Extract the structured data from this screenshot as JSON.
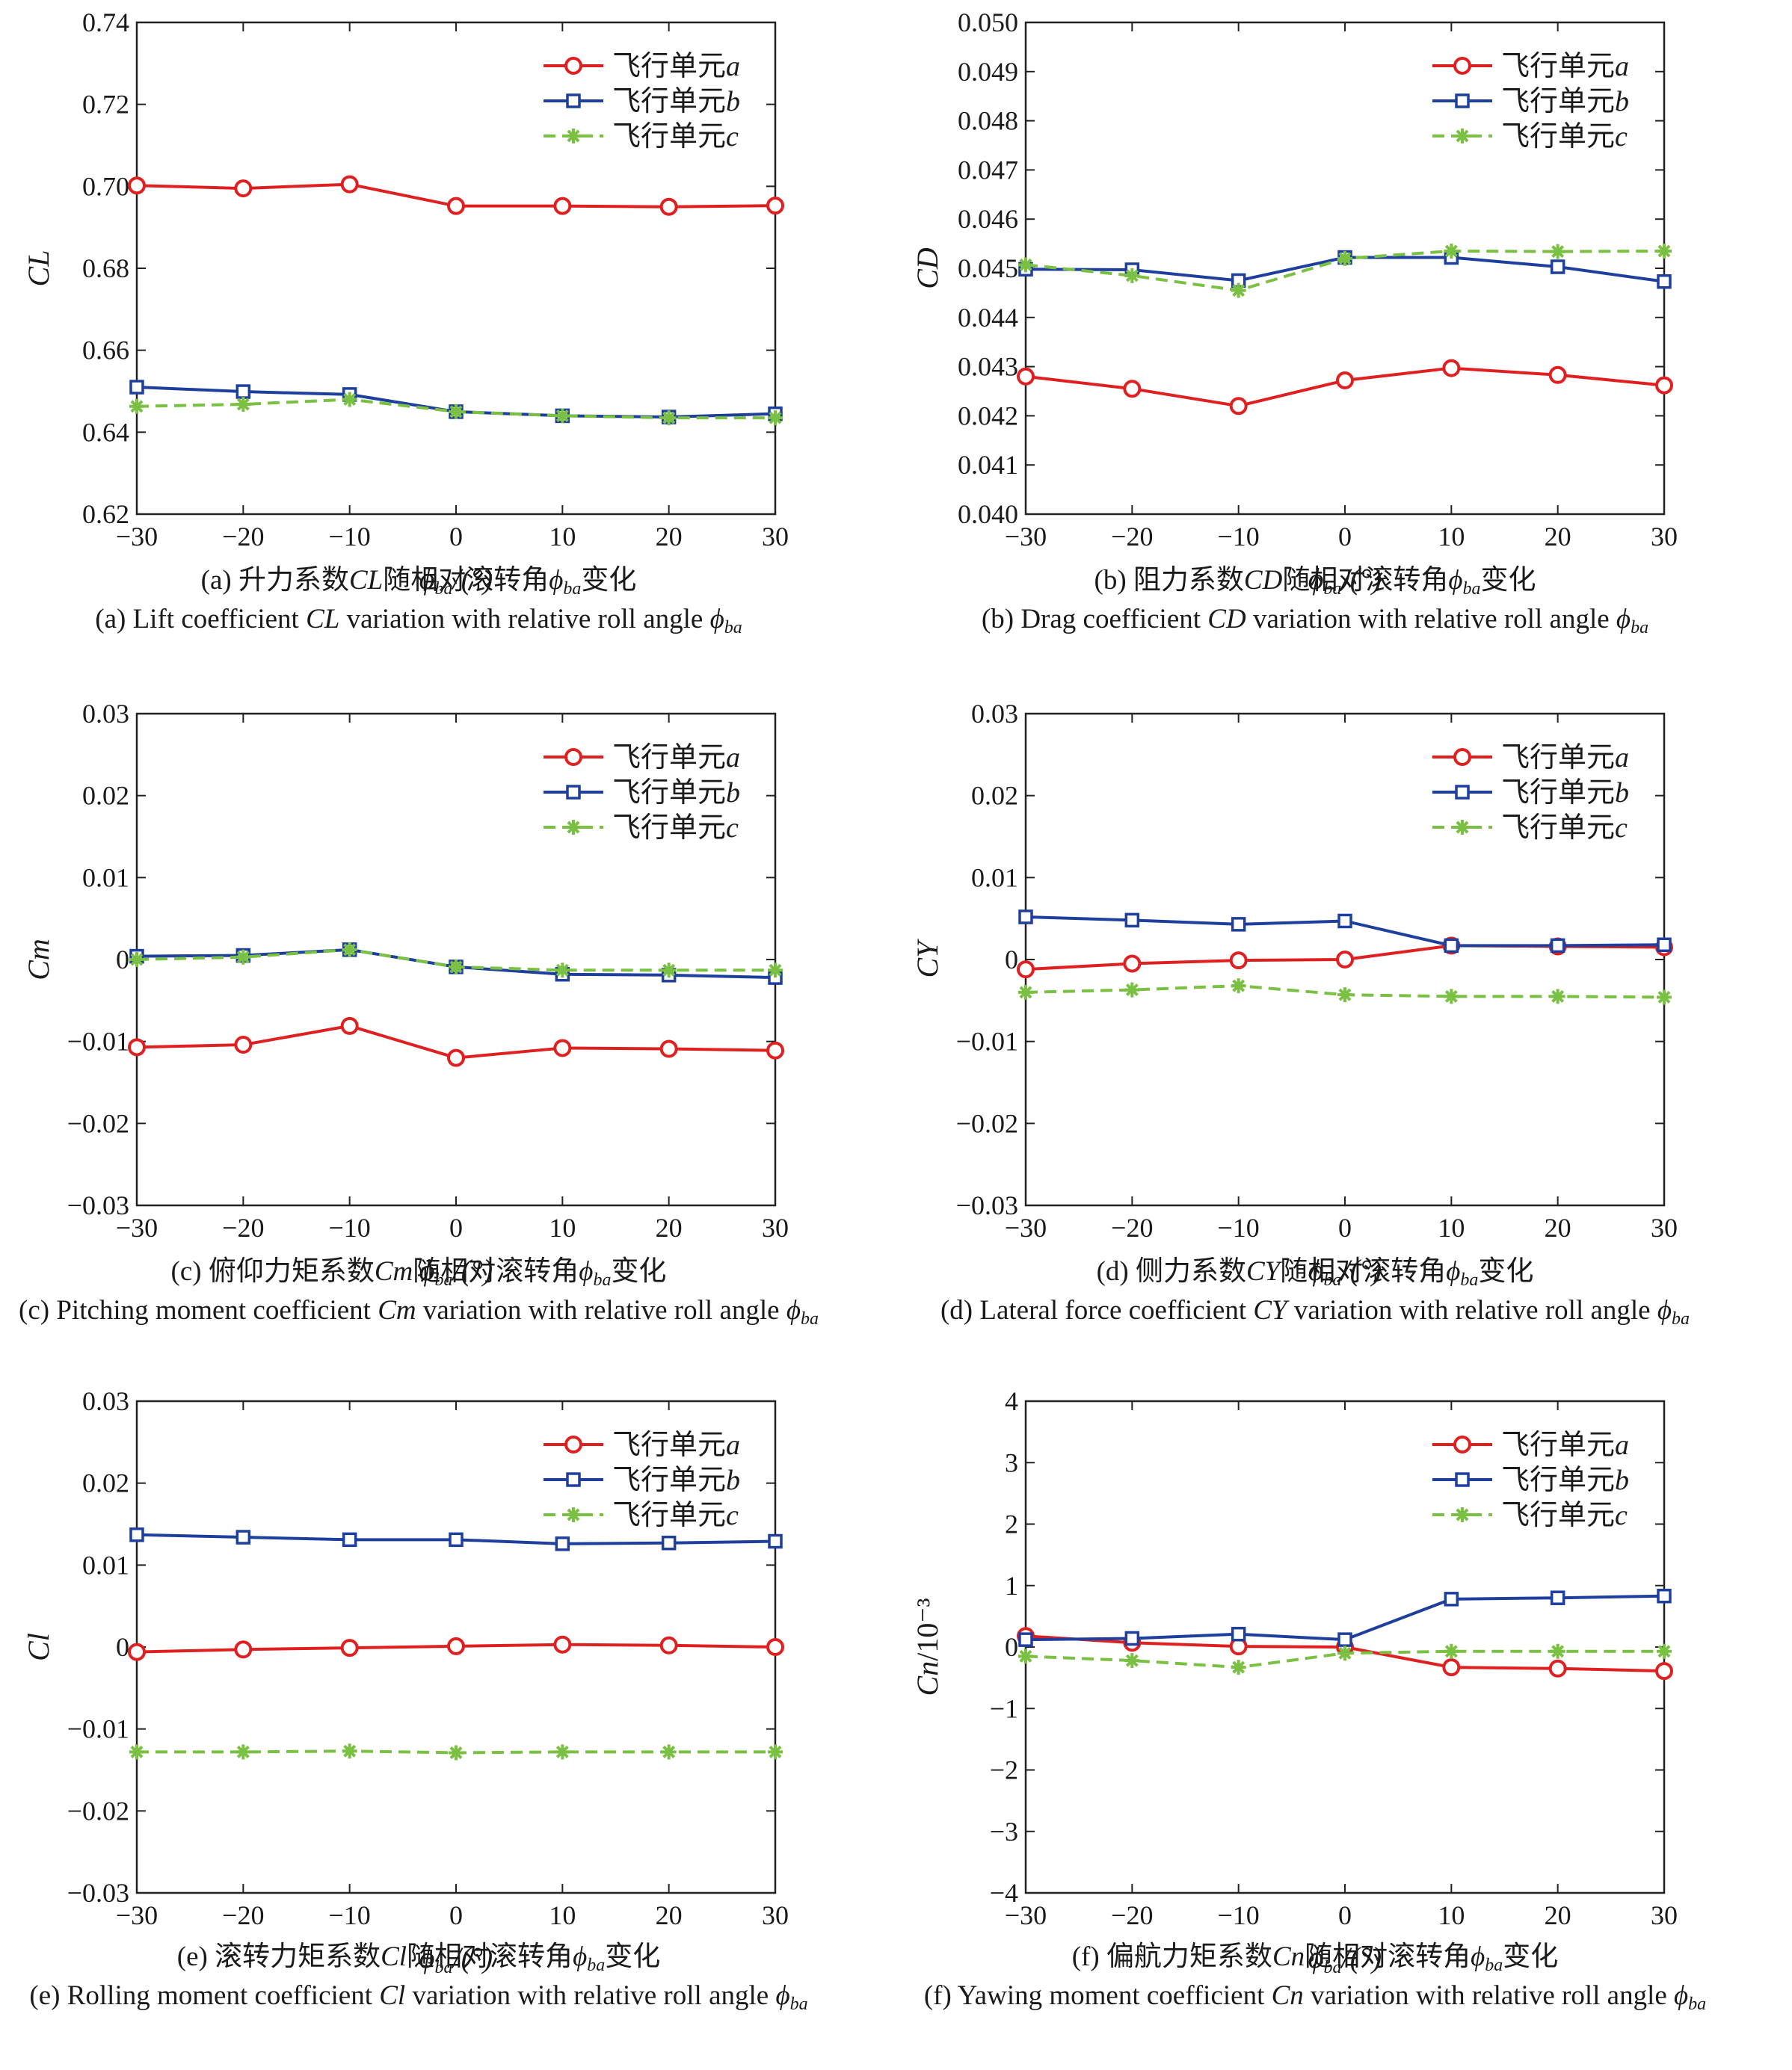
{
  "legend_entries": [
    "飞行单元a",
    "飞行单元b",
    "飞行单元c"
  ],
  "series_styles": [
    {
      "color": "#e02020",
      "marker": "circle",
      "dash": "solid"
    },
    {
      "color": "#1f3f9e",
      "marker": "square",
      "dash": "solid"
    },
    {
      "color": "#7ac143",
      "marker": "star",
      "dash": "dashed"
    }
  ],
  "chart_data": [
    {
      "type": "line",
      "panel": "a",
      "xlabel": "ϕba/(°)",
      "ylabel": "CL",
      "x": [
        -30,
        -20,
        -10,
        0,
        10,
        20,
        30
      ],
      "xlim": [
        -30,
        30
      ],
      "ylim": [
        0.62,
        0.74
      ],
      "yticks": [
        "0.62",
        "0.64",
        "0.66",
        "0.68",
        "0.70",
        "0.72",
        "0.74"
      ],
      "legend_position": "top-right",
      "grid": false,
      "series": [
        {
          "name": "飞行单元a",
          "values": [
            0.7002,
            0.6995,
            0.7005,
            0.6952,
            0.6952,
            0.695,
            0.6953
          ]
        },
        {
          "name": "飞行单元b",
          "values": [
            0.651,
            0.6499,
            0.6492,
            0.645,
            0.644,
            0.6437,
            0.6445
          ]
        },
        {
          "name": "飞行单元c",
          "values": [
            0.6463,
            0.6468,
            0.648,
            0.645,
            0.644,
            0.6435,
            0.6435
          ]
        }
      ],
      "caption_cn": "(a) 升力系数CL随相对滚转角ϕba变化",
      "caption_en": "(a) Lift coefficient CL variation with relative roll angle ϕba"
    },
    {
      "type": "line",
      "panel": "b",
      "xlabel": "ϕba/(°)",
      "ylabel": "CD",
      "x": [
        -30,
        -20,
        -10,
        0,
        10,
        20,
        30
      ],
      "xlim": [
        -30,
        30
      ],
      "ylim": [
        0.04,
        0.05
      ],
      "yticks": [
        "0.040",
        "0.041",
        "0.042",
        "0.043",
        "0.044",
        "0.045",
        "0.046",
        "0.047",
        "0.048",
        "0.049",
        "0.050"
      ],
      "legend_position": "top-right",
      "grid": false,
      "series": [
        {
          "name": "飞行单元a",
          "values": [
            0.0428,
            0.04255,
            0.0422,
            0.04272,
            0.04297,
            0.04283,
            0.04262
          ]
        },
        {
          "name": "飞行单元b",
          "values": [
            0.04498,
            0.04497,
            0.04475,
            0.04522,
            0.04522,
            0.04503,
            0.04473
          ]
        },
        {
          "name": "飞行单元c",
          "values": [
            0.04507,
            0.04485,
            0.04455,
            0.0452,
            0.04535,
            0.04534,
            0.04535
          ]
        }
      ],
      "caption_cn": "(b) 阻力系数CD随相对滚转角ϕba变化",
      "caption_en": "(b) Drag coefficient CD variation with relative roll angle ϕba"
    },
    {
      "type": "line",
      "panel": "c",
      "xlabel": "ϕba/(°)",
      "ylabel": "Cm",
      "x": [
        -30,
        -20,
        -10,
        0,
        10,
        20,
        30
      ],
      "xlim": [
        -30,
        30
      ],
      "ylim": [
        -0.03,
        0.03
      ],
      "yticks": [
        "−0.03",
        "−0.02",
        "−0.01",
        "0",
        "0.01",
        "0.02",
        "0.03"
      ],
      "legend_position": "top-right",
      "grid": false,
      "series": [
        {
          "name": "飞行单元a",
          "values": [
            -0.0107,
            -0.0104,
            -0.0081,
            -0.012,
            -0.0108,
            -0.0109,
            -0.0111
          ]
        },
        {
          "name": "飞行单元b",
          "values": [
            0.0004,
            0.0005,
            0.0012,
            -0.0009,
            -0.0018,
            -0.0019,
            -0.0022
          ]
        },
        {
          "name": "飞行单元c",
          "values": [
            0.0,
            0.0003,
            0.0012,
            -0.0009,
            -0.0013,
            -0.0013,
            -0.0013
          ]
        }
      ],
      "caption_cn": "(c) 俯仰力矩系数Cm随相对滚转角ϕba变化",
      "caption_en": "(c) Pitching moment coefficient Cm variation with relative roll angle ϕba"
    },
    {
      "type": "line",
      "panel": "d",
      "xlabel": "ϕba/(°)",
      "ylabel": "CY",
      "x": [
        -30,
        -20,
        -10,
        0,
        10,
        20,
        30
      ],
      "xlim": [
        -30,
        30
      ],
      "ylim": [
        -0.03,
        0.03
      ],
      "yticks": [
        "−0.03",
        "−0.02",
        "−0.01",
        "0",
        "0.01",
        "0.02",
        "0.03"
      ],
      "legend_position": "top-right",
      "grid": false,
      "series": [
        {
          "name": "飞行单元a",
          "values": [
            -0.0012,
            -0.0005,
            -0.0001,
            0.0,
            0.0017,
            0.0016,
            0.0015
          ]
        },
        {
          "name": "飞行单元b",
          "values": [
            0.0052,
            0.0048,
            0.0043,
            0.0047,
            0.0017,
            0.0017,
            0.0018
          ]
        },
        {
          "name": "飞行单元c",
          "values": [
            -0.004,
            -0.0037,
            -0.0032,
            -0.0043,
            -0.0045,
            -0.0045,
            -0.0046
          ]
        }
      ],
      "caption_cn": "(d) 侧力系数CY随相对滚转角ϕba变化",
      "caption_en": "(d) Lateral force coefficient CY variation with relative roll angle ϕba"
    },
    {
      "type": "line",
      "panel": "e",
      "xlabel": "ϕba/(°)",
      "ylabel": "Cl",
      "x": [
        -30,
        -20,
        -10,
        0,
        10,
        20,
        30
      ],
      "xlim": [
        -30,
        30
      ],
      "ylim": [
        -0.03,
        0.03
      ],
      "yticks": [
        "−0.03",
        "−0.02",
        "−0.01",
        "0",
        "0.01",
        "0.02",
        "0.03"
      ],
      "legend_position": "top-right",
      "grid": false,
      "series": [
        {
          "name": "飞行单元a",
          "values": [
            -0.0006,
            -0.0003,
            -0.0001,
            0.0001,
            0.0003,
            0.0002,
            0.0
          ]
        },
        {
          "name": "飞行单元b",
          "values": [
            0.0137,
            0.0134,
            0.0131,
            0.0131,
            0.0126,
            0.0127,
            0.0129
          ]
        },
        {
          "name": "飞行单元c",
          "values": [
            -0.0128,
            -0.0128,
            -0.0127,
            -0.0129,
            -0.0128,
            -0.0128,
            -0.0128
          ]
        }
      ],
      "caption_cn": "(e) 滚转力矩系数Cl随相对滚转角ϕba变化",
      "caption_en": "(e) Rolling moment coefficient Cl variation with relative roll angle ϕba"
    },
    {
      "type": "line",
      "panel": "f",
      "xlabel": "ϕba/(°)",
      "ylabel": "Cn/10⁻³",
      "x": [
        -30,
        -20,
        -10,
        0,
        10,
        20,
        30
      ],
      "xlim": [
        -30,
        30
      ],
      "ylim": [
        -4,
        4
      ],
      "yticks": [
        "−4",
        "−3",
        "−2",
        "−1",
        "0",
        "1",
        "2",
        "3",
        "4"
      ],
      "legend_position": "top-right",
      "grid": false,
      "series": [
        {
          "name": "飞行单元a",
          "values": [
            0.18,
            0.07,
            0.01,
            0.0,
            -0.33,
            -0.35,
            -0.39
          ]
        },
        {
          "name": "飞行单元b",
          "values": [
            0.12,
            0.14,
            0.21,
            0.12,
            0.78,
            0.8,
            0.83
          ]
        },
        {
          "name": "飞行单元c",
          "values": [
            -0.15,
            -0.22,
            -0.33,
            -0.1,
            -0.07,
            -0.07,
            -0.07
          ]
        }
      ],
      "caption_cn": "(f) 偏航力矩系数Cn随相对滚转角ϕba变化",
      "caption_en": "(f) Yawing moment coefficient Cn variation with relative roll angle ϕba"
    }
  ]
}
